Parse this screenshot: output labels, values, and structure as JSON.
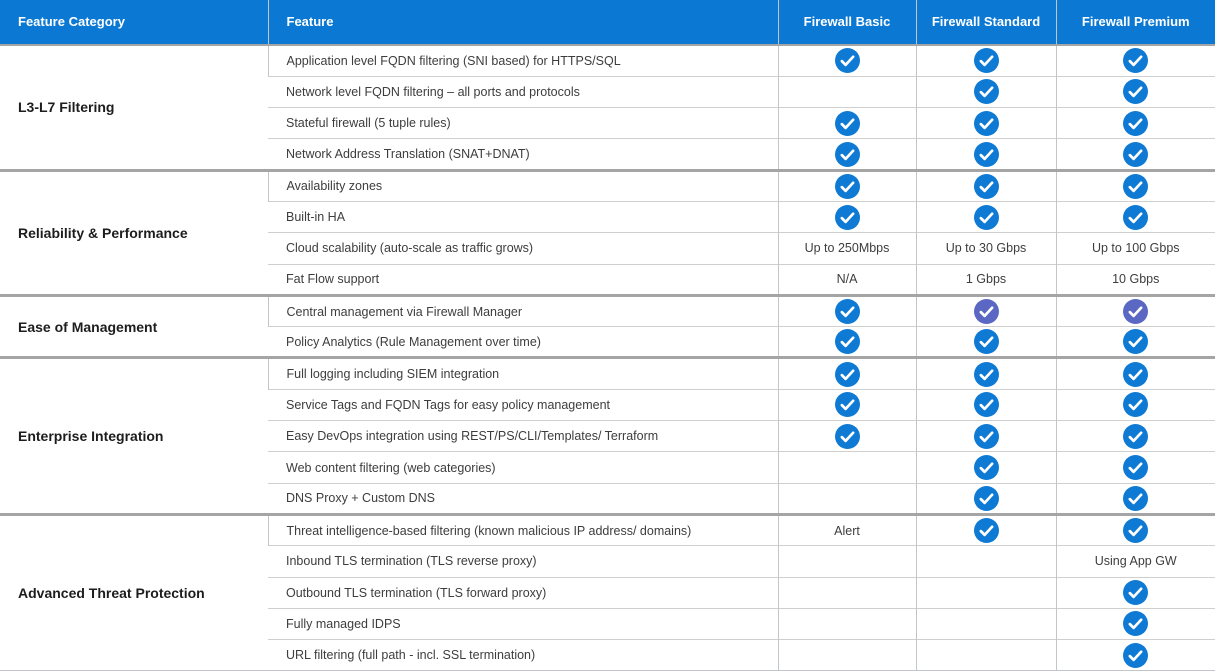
{
  "table": {
    "colors": {
      "header_bg": "#0b79d4",
      "check_blue": "#0e7ad4",
      "check_purple": "#5a68c4"
    },
    "headers": [
      "Feature Category",
      "Feature",
      "Firewall Basic",
      "Firewall Standard",
      "Firewall Premium"
    ],
    "cell_icon_names": {
      "check": "checkmark-circle-blue-icon",
      "check-alt": "checkmark-circle-purple-icon"
    },
    "sections": [
      {
        "category": "L3-L7 Filtering",
        "rows": [
          {
            "feature": "Application level FQDN filtering (SNI based) for HTTPS/SQL",
            "basic": "check",
            "standard": "check",
            "premium": "check"
          },
          {
            "feature": "Network level FQDN filtering – all ports and protocols",
            "basic": "",
            "standard": "check",
            "premium": "check"
          },
          {
            "feature": "Stateful firewall (5 tuple rules)",
            "basic": "check",
            "standard": "check",
            "premium": "check"
          },
          {
            "feature": "Network Address Translation (SNAT+DNAT)",
            "basic": "check",
            "standard": "check",
            "premium": "check"
          }
        ]
      },
      {
        "category": "Reliability & Performance",
        "rows": [
          {
            "feature": "Availability zones",
            "basic": "check",
            "standard": "check",
            "premium": "check"
          },
          {
            "feature": "Built-in HA",
            "basic": "check",
            "standard": "check",
            "premium": "check"
          },
          {
            "feature": "Cloud scalability (auto-scale as traffic grows)",
            "basic": "Up to 250Mbps",
            "standard": "Up to 30 Gbps",
            "premium": "Up to 100 Gbps"
          },
          {
            "feature": "Fat Flow support",
            "basic": "N/A",
            "standard": "1 Gbps",
            "premium": "10 Gbps"
          }
        ]
      },
      {
        "category": "Ease of Management",
        "rows": [
          {
            "feature": "Central management via Firewall Manager",
            "basic": "check",
            "standard": "check-alt",
            "premium": "check-alt"
          },
          {
            "feature": "Policy Analytics (Rule Management over time)",
            "basic": "check",
            "standard": "check",
            "premium": "check"
          }
        ]
      },
      {
        "category": "Enterprise Integration",
        "rows": [
          {
            "feature": "Full logging including SIEM integration",
            "basic": "check",
            "standard": "check",
            "premium": "check"
          },
          {
            "feature": "Service Tags and FQDN Tags for easy policy management",
            "basic": "check",
            "standard": "check",
            "premium": "check"
          },
          {
            "feature": "Easy DevOps integration using REST/PS/CLI/Templates/ Terraform",
            "basic": "check",
            "standard": "check",
            "premium": "check"
          },
          {
            "feature": "Web content filtering (web categories)",
            "basic": "",
            "standard": "check",
            "premium": "check"
          },
          {
            "feature": "DNS Proxy + Custom DNS",
            "basic": "",
            "standard": "check",
            "premium": "check"
          }
        ]
      },
      {
        "category": "Advanced Threat Protection",
        "rows": [
          {
            "feature": "Threat intelligence-based filtering (known malicious IP address/ domains)",
            "basic": "Alert",
            "standard": "check",
            "premium": "check"
          },
          {
            "feature": "Inbound TLS termination (TLS reverse proxy)",
            "basic": "",
            "standard": "",
            "premium": "Using App GW"
          },
          {
            "feature": "Outbound TLS termination (TLS forward proxy)",
            "basic": "",
            "standard": "",
            "premium": "check"
          },
          {
            "feature": "Fully managed IDPS",
            "basic": "",
            "standard": "",
            "premium": "check"
          },
          {
            "feature": "URL filtering (full path - incl. SSL termination)",
            "basic": "",
            "standard": "",
            "premium": "check"
          }
        ]
      }
    ]
  }
}
